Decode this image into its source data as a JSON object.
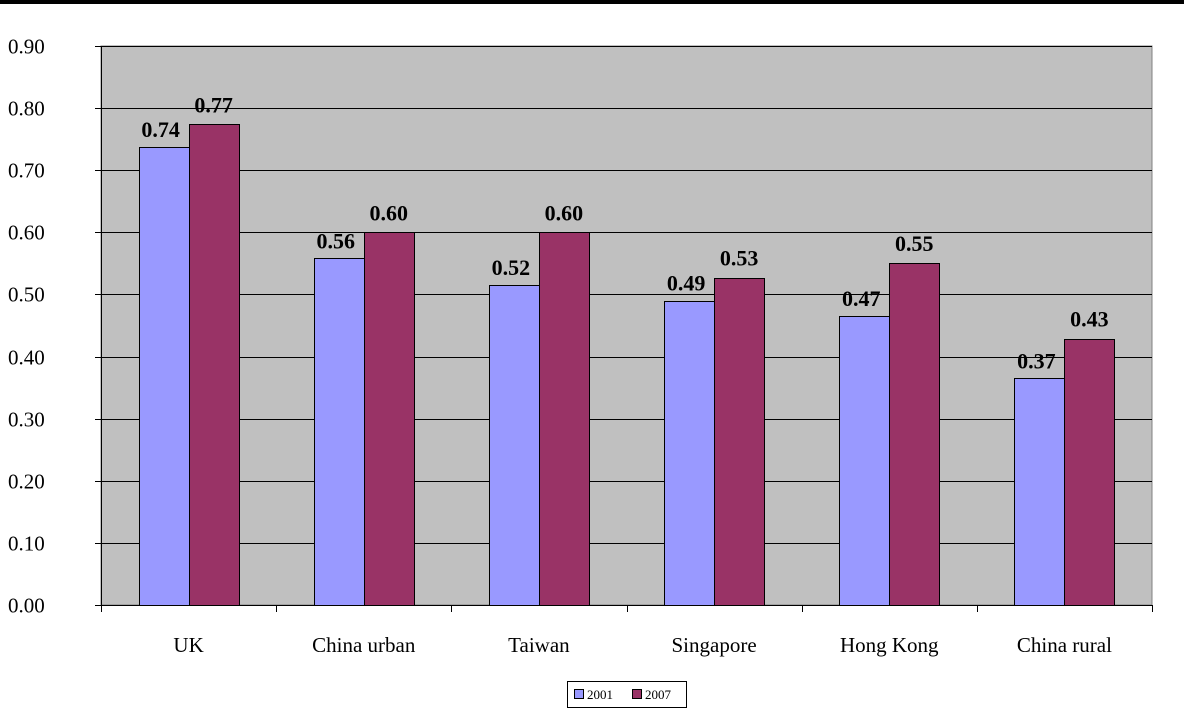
{
  "chart_data": {
    "type": "bar",
    "title": "",
    "xlabel": "",
    "ylabel": "",
    "categories": [
      "UK",
      "China urban",
      "Taiwan",
      "Singapore",
      "Hong Kong",
      "China rural"
    ],
    "series": [
      {
        "name": "2001",
        "values": [
          0.737,
          0.558,
          0.515,
          0.49,
          0.465,
          0.365
        ],
        "labels": [
          "0.74",
          "0.56",
          "0.52",
          "0.49",
          "0.47",
          "0.37"
        ],
        "color": "#9999FF"
      },
      {
        "name": "2007",
        "values": [
          0.774,
          0.6,
          0.6,
          0.527,
          0.551,
          0.429
        ],
        "labels": [
          "0.77",
          "0.60",
          "0.60",
          "0.53",
          "0.55",
          "0.43"
        ],
        "color": "#993366"
      }
    ],
    "ylim": [
      0,
      0.9
    ],
    "yticks": [
      "0.00",
      "0.10",
      "0.20",
      "0.30",
      "0.40",
      "0.50",
      "0.60",
      "0.70",
      "0.80",
      "0.90"
    ],
    "grid": true,
    "plot_background": "#C0C0C0",
    "legend_position": "bottom-center"
  }
}
